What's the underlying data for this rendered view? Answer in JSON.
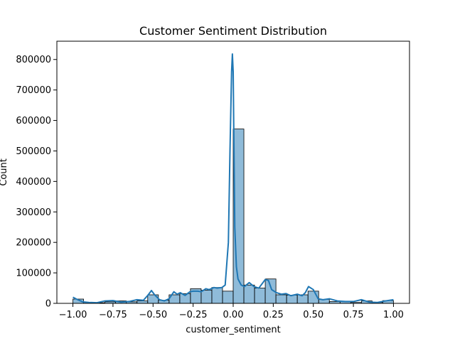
{
  "chart_data": {
    "type": "bar",
    "title": "Customer Sentiment Distribution",
    "xlabel": "customer_sentiment",
    "ylabel": "Count",
    "xlim": [
      -1.1,
      1.1
    ],
    "ylim": [
      0,
      860000
    ],
    "xticks": [
      -1.0,
      -0.75,
      -0.5,
      -0.25,
      0.0,
      0.25,
      0.5,
      0.75,
      1.0
    ],
    "xtick_labels": [
      "−1.00",
      "−0.75",
      "−0.50",
      "−0.25",
      "0.00",
      "0.25",
      "0.50",
      "0.75",
      "1.00"
    ],
    "yticks": [
      0,
      100000,
      200000,
      300000,
      400000,
      500000,
      600000,
      700000,
      800000
    ],
    "ytick_labels": [
      "0",
      "100000",
      "200000",
      "300000",
      "400000",
      "500000",
      "600000",
      "700000",
      "800000"
    ],
    "bin_edges": [
      -1.0,
      -0.9333,
      -0.8667,
      -0.8,
      -0.7333,
      -0.6667,
      -0.6,
      -0.5333,
      -0.4667,
      -0.4,
      -0.3333,
      -0.2667,
      -0.2,
      -0.1333,
      -0.0667,
      0.0,
      0.0667,
      0.1333,
      0.2,
      0.2667,
      0.3333,
      0.4,
      0.4667,
      0.5333,
      0.6,
      0.6667,
      0.7333,
      0.8,
      0.8667,
      0.9333,
      1.0
    ],
    "counts": [
      14000,
      3000,
      2000,
      5000,
      8000,
      5000,
      8000,
      28000,
      10000,
      28000,
      32000,
      48000,
      43000,
      52000,
      40000,
      572000,
      60000,
      50000,
      80000,
      28000,
      27000,
      28000,
      40000,
      13000,
      6000,
      7000,
      3000,
      8000,
      3000,
      9000
    ],
    "kde": {
      "x": [
        -1.0,
        -0.97,
        -0.94,
        -0.9,
        -0.85,
        -0.8,
        -0.75,
        -0.7,
        -0.65,
        -0.6,
        -0.56,
        -0.53,
        -0.51,
        -0.49,
        -0.46,
        -0.43,
        -0.4,
        -0.37,
        -0.35,
        -0.33,
        -0.3,
        -0.27,
        -0.25,
        -0.22,
        -0.2,
        -0.17,
        -0.15,
        -0.12,
        -0.1,
        -0.07,
        -0.05,
        -0.03,
        -0.02,
        -0.01,
        -0.005,
        0.0,
        0.005,
        0.01,
        0.02,
        0.03,
        0.05,
        0.07,
        0.1,
        0.13,
        0.16,
        0.2,
        0.22,
        0.24,
        0.27,
        0.3,
        0.33,
        0.36,
        0.4,
        0.43,
        0.45,
        0.47,
        0.5,
        0.53,
        0.56,
        0.6,
        0.65,
        0.7,
        0.75,
        0.8,
        0.85,
        0.9,
        0.95,
        1.0
      ],
      "y": [
        20000,
        12000,
        5000,
        3000,
        2000,
        8000,
        9000,
        4000,
        6000,
        12000,
        10000,
        28000,
        42000,
        28000,
        12000,
        8000,
        15000,
        38000,
        30000,
        35000,
        26000,
        38000,
        40000,
        40000,
        38000,
        48000,
        45000,
        52000,
        50000,
        52000,
        60000,
        200000,
        500000,
        760000,
        818000,
        760000,
        500000,
        250000,
        120000,
        80000,
        60000,
        55000,
        68000,
        55000,
        50000,
        78000,
        75000,
        45000,
        35000,
        30000,
        32000,
        25000,
        30000,
        25000,
        35000,
        55000,
        45000,
        15000,
        12000,
        15000,
        8000,
        6000,
        6000,
        12000,
        4000,
        3000,
        8000,
        12000
      ]
    }
  }
}
